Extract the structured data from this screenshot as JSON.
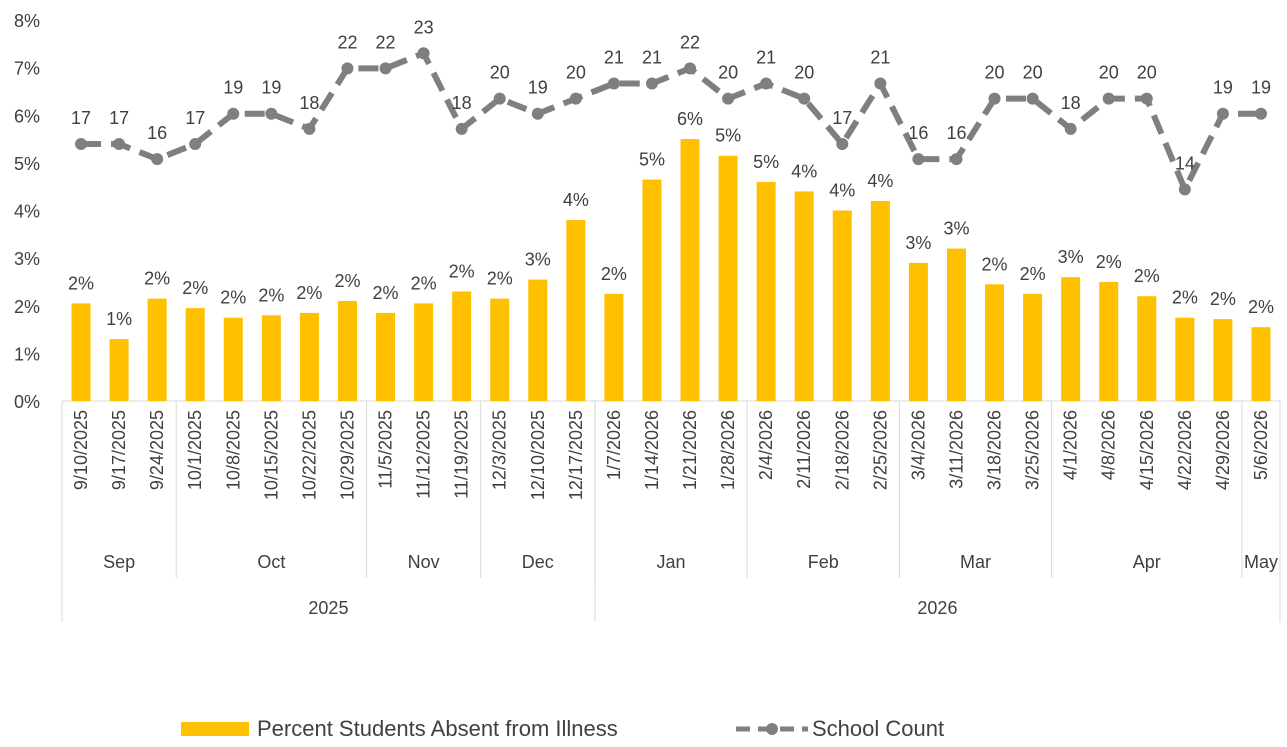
{
  "chart_data": {
    "type": "bar",
    "colors": {
      "bar": "#FFC000",
      "line": "#7F7F7F",
      "text": "#404040",
      "axis": "#D9D9D9"
    },
    "y_axis": {
      "min": 0,
      "max": 8,
      "ticks": [
        "0%",
        "1%",
        "2%",
        "3%",
        "4%",
        "5%",
        "6%",
        "7%",
        "8%"
      ]
    },
    "line_axis": {
      "min": 0,
      "max": 25.2
    },
    "categories": [
      "9/10/2025",
      "9/17/2025",
      "9/24/2025",
      "10/1/2025",
      "10/8/2025",
      "10/15/2025",
      "10/22/2025",
      "10/29/2025",
      "11/5/2025",
      "11/12/2025",
      "11/19/2025",
      "12/3/2025",
      "12/10/2025",
      "12/17/2025",
      "1/7/2026",
      "1/14/2026",
      "1/21/2026",
      "1/28/2026",
      "2/4/2026",
      "2/11/2026",
      "2/18/2026",
      "2/25/2026",
      "3/4/2026",
      "3/11/2026",
      "3/18/2026",
      "3/25/2026",
      "4/1/2026",
      "4/8/2026",
      "4/15/2026",
      "4/22/2026",
      "4/29/2026",
      "5/6/2026"
    ],
    "months": [
      {
        "label": "Sep",
        "count": 3
      },
      {
        "label": "Oct",
        "count": 5
      },
      {
        "label": "Nov",
        "count": 3
      },
      {
        "label": "Dec",
        "count": 3
      },
      {
        "label": "Jan",
        "count": 4
      },
      {
        "label": "Feb",
        "count": 4
      },
      {
        "label": "Mar",
        "count": 4
      },
      {
        "label": "Apr",
        "count": 5
      },
      {
        "label": "May",
        "count": 1
      }
    ],
    "years": [
      {
        "label": "2025",
        "count": 14
      },
      {
        "label": "2026",
        "count": 18
      }
    ],
    "series": [
      {
        "name": "Percent Students Absent from Illness",
        "type": "bar",
        "values": [
          2.05,
          1.3,
          2.15,
          1.95,
          1.75,
          1.8,
          1.85,
          2.1,
          1.85,
          2.05,
          2.3,
          2.15,
          2.55,
          3.8,
          2.25,
          4.65,
          5.5,
          5.15,
          4.6,
          4.4,
          4.0,
          4.2,
          2.9,
          3.2,
          2.45,
          2.25,
          2.6,
          2.5,
          2.2,
          1.75,
          1.72,
          1.55
        ],
        "labels": [
          "2%",
          "1%",
          "2%",
          "2%",
          "2%",
          "2%",
          "2%",
          "2%",
          "2%",
          "2%",
          "2%",
          "2%",
          "3%",
          "4%",
          "2%",
          "5%",
          "6%",
          "5%",
          "5%",
          "4%",
          "4%",
          "4%",
          "3%",
          "3%",
          "2%",
          "2%",
          "3%",
          "2%",
          "2%",
          "2%",
          "2%",
          "2%"
        ]
      },
      {
        "name": "School Count",
        "type": "line",
        "values": [
          17,
          17,
          16,
          17,
          19,
          19,
          18,
          22,
          22,
          23,
          18,
          20,
          19,
          20,
          21,
          21,
          22,
          20,
          21,
          20,
          17,
          21,
          16,
          16,
          20,
          20,
          18,
          20,
          20,
          14,
          19,
          19
        ],
        "labels": [
          "17",
          "17",
          "16",
          "17",
          "19",
          "19",
          "18",
          "22",
          "22",
          "23",
          "18",
          "20",
          "19",
          "20",
          "21",
          "21",
          "22",
          "20",
          "21",
          "20",
          "17",
          "21",
          "16",
          "16",
          "20",
          "20",
          "18",
          "20",
          "20",
          "14",
          "19",
          "19"
        ]
      }
    ]
  }
}
